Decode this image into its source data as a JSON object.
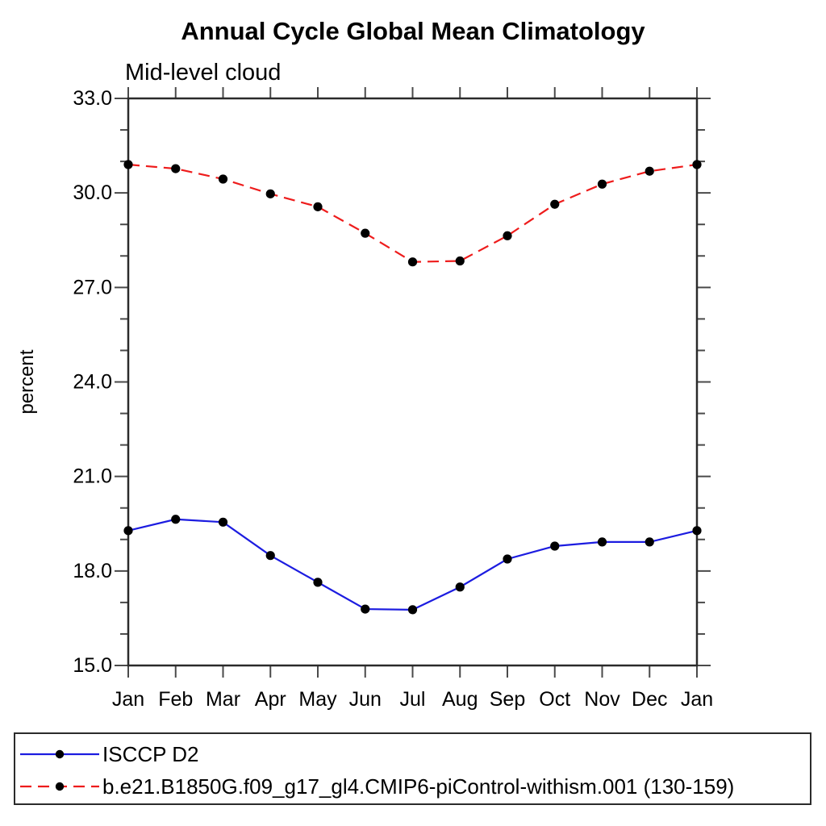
{
  "chart_data": {
    "type": "line",
    "title": "Annual Cycle Global Mean Climatology",
    "subtitle": "Mid-level cloud",
    "ylabel": "percent",
    "xlabel": "",
    "categories": [
      "Jan",
      "Feb",
      "Mar",
      "Apr",
      "May",
      "Jun",
      "Jul",
      "Aug",
      "Sep",
      "Oct",
      "Nov",
      "Dec",
      "Jan"
    ],
    "ylim": [
      15.0,
      33.0
    ],
    "yticks": [
      15,
      18,
      21,
      24,
      27,
      30,
      33
    ],
    "ytick_labels": [
      "15.0",
      "18.0",
      "21.0",
      "24.0",
      "27.0",
      "30.0",
      "33.0"
    ],
    "minor_tick_step": 1,
    "grid": false,
    "legend_position": "bottom-outside",
    "marker": "filled-circle",
    "marker_color": "#000000",
    "axis_color": "#2b2b2b",
    "tick_color": "#4a4a4a",
    "series": [
      {
        "name": "ISCCP D2",
        "color": "#1c1ce0",
        "line": "solid",
        "values": [
          19.28,
          19.64,
          19.55,
          18.49,
          17.64,
          16.79,
          16.77,
          17.49,
          18.38,
          18.79,
          18.92,
          18.92,
          19.28
        ]
      },
      {
        "name": "b.e21.B1850G.f09_g17_gl4.CMIP6-piControl-withism.001 (130-159)",
        "color": "#ee1c1c",
        "line": "dashed",
        "values": [
          30.9,
          30.77,
          30.44,
          29.97,
          29.56,
          28.72,
          27.81,
          27.84,
          28.64,
          29.64,
          30.28,
          30.69,
          30.9
        ]
      }
    ]
  }
}
